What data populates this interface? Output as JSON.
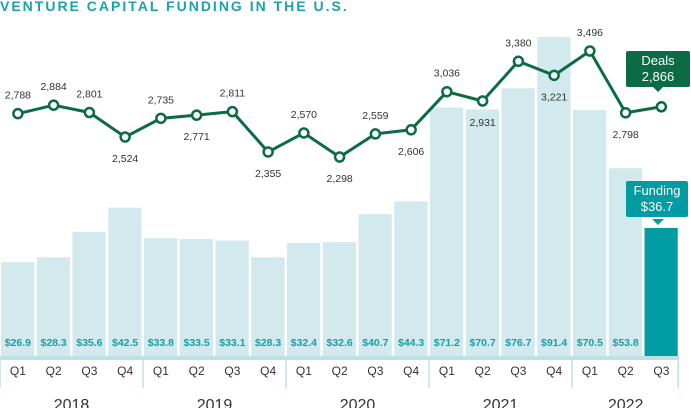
{
  "chart_data": {
    "type": "bar+line",
    "title": "VENTURE CAPITAL FUNDING IN THE U.S.",
    "years": [
      "2018",
      "2019",
      "2020",
      "2021",
      "2022"
    ],
    "categories": [
      "Q1",
      "Q2",
      "Q3",
      "Q4",
      "Q1",
      "Q2",
      "Q3",
      "Q4",
      "Q1",
      "Q2",
      "Q3",
      "Q4",
      "Q1",
      "Q2",
      "Q3",
      "Q4",
      "Q1",
      "Q2",
      "Q3"
    ],
    "series": [
      {
        "name": "Funding",
        "type": "bar",
        "unit": "$B",
        "color": "#d2eaed",
        "highlight_color": "#009ba3",
        "values": [
          26.9,
          28.3,
          35.6,
          42.5,
          33.8,
          33.5,
          33.1,
          28.3,
          32.4,
          32.6,
          40.7,
          44.3,
          71.2,
          70.7,
          76.7,
          91.4,
          70.5,
          53.8,
          36.7
        ],
        "labels": [
          "$26.9",
          "$28.3",
          "$35.6",
          "$42.5",
          "$33.8",
          "$33.5",
          "$33.1",
          "$28.3",
          "$32.4",
          "$32.6",
          "$40.7",
          "$44.3",
          "$71.2",
          "$70.7",
          "$76.7",
          "$91.4",
          "$70.5",
          "$53.8",
          "$36.7"
        ]
      },
      {
        "name": "Deals",
        "type": "line",
        "color": "#0b6b45",
        "values": [
          2788,
          2884,
          2801,
          2524,
          2735,
          2771,
          2811,
          2355,
          2570,
          2298,
          2559,
          2606,
          3036,
          2931,
          3380,
          3221,
          3496,
          2798,
          2866
        ],
        "labels": [
          "2,788",
          "2,884",
          "2,801",
          "2,524",
          "2,735",
          "2,771",
          "2,811",
          "2,355",
          "2,570",
          "2,298",
          "2,559",
          "2,606",
          "3,036",
          "2,931",
          "3,380",
          "3,221",
          "3,496",
          "2,798",
          "2,866"
        ],
        "label_pos": [
          "above",
          "above",
          "above",
          "below",
          "above",
          "below",
          "above",
          "below",
          "above",
          "below",
          "above",
          "below",
          "above",
          "below",
          "above",
          "below",
          "above",
          "below",
          "none"
        ]
      }
    ],
    "callouts": {
      "deals": {
        "label": "Deals",
        "value": "2,866"
      },
      "funding": {
        "label": "Funding",
        "value": "$36.7"
      }
    }
  }
}
